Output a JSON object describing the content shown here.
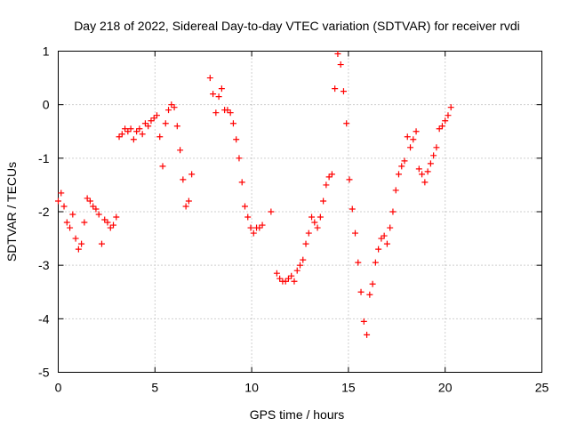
{
  "chart_data": {
    "type": "scatter",
    "title": "Day 218 of 2022, Sidereal Day-to-day VTEC variation (SDTVAR) for receiver rvdi",
    "xlabel": "GPS time / hours",
    "ylabel": "SDTVAR / TECUs",
    "xlim": [
      0,
      25
    ],
    "ylim": [
      -5,
      1
    ],
    "xticks": [
      0,
      5,
      10,
      15,
      20,
      25
    ],
    "yticks": [
      -5,
      -4,
      -3,
      -2,
      -1,
      0,
      1
    ],
    "xtick_labels": [
      "0",
      "5",
      "10",
      "15",
      "20",
      "25"
    ],
    "ytick_labels": [
      "-5",
      "-4",
      "-3",
      "-2",
      "-1",
      "0",
      "1"
    ],
    "grid": true,
    "marker": "+",
    "color": "#ff0000",
    "series": [
      {
        "name": "rvdi",
        "x": [
          0.0,
          0.15,
          0.3,
          0.45,
          0.6,
          0.75,
          0.9,
          1.05,
          1.2,
          1.35,
          1.5,
          1.65,
          1.8,
          1.95,
          2.1,
          2.25,
          2.4,
          2.55,
          2.7,
          2.85,
          3.0,
          3.15,
          3.3,
          3.45,
          3.6,
          3.75,
          3.9,
          4.05,
          4.2,
          4.35,
          4.5,
          4.65,
          4.8,
          4.95,
          5.1,
          5.25,
          5.4,
          5.55,
          5.7,
          5.85,
          6.0,
          6.15,
          6.3,
          6.45,
          6.6,
          6.75,
          6.9,
          7.85,
          8.0,
          8.15,
          8.3,
          8.45,
          8.6,
          8.75,
          8.9,
          9.05,
          9.2,
          9.35,
          9.5,
          9.65,
          9.8,
          9.95,
          10.1,
          10.25,
          10.4,
          10.55,
          11.0,
          11.3,
          11.45,
          11.6,
          11.75,
          11.9,
          12.05,
          12.2,
          12.35,
          12.5,
          12.65,
          12.8,
          12.95,
          13.1,
          13.25,
          13.4,
          13.55,
          13.7,
          13.85,
          14.0,
          14.15,
          14.3,
          14.45,
          14.6,
          14.75,
          14.9,
          15.05,
          15.2,
          15.35,
          15.5,
          15.65,
          15.8,
          15.95,
          16.1,
          16.25,
          16.4,
          16.55,
          16.7,
          16.85,
          17.0,
          17.15,
          17.3,
          17.45,
          17.6,
          17.75,
          17.9,
          18.05,
          18.2,
          18.35,
          18.5,
          18.65,
          18.8,
          18.95,
          19.1,
          19.25,
          19.4,
          19.55,
          19.7,
          19.85,
          20.0,
          20.15,
          20.3
        ],
        "y": [
          -1.8,
          -1.65,
          -1.9,
          -2.2,
          -2.3,
          -2.05,
          -2.5,
          -2.7,
          -2.6,
          -2.2,
          -1.75,
          -1.8,
          -1.9,
          -1.95,
          -2.05,
          -2.6,
          -2.15,
          -2.2,
          -2.3,
          -2.25,
          -2.1,
          -0.6,
          -0.55,
          -0.45,
          -0.5,
          -0.45,
          -0.65,
          -0.5,
          -0.45,
          -0.55,
          -0.35,
          -0.4,
          -0.3,
          -0.25,
          -0.2,
          -0.6,
          -1.15,
          -0.35,
          -0.1,
          0.0,
          -0.05,
          -0.4,
          -0.85,
          -1.4,
          -1.9,
          -1.8,
          -1.3,
          0.5,
          0.2,
          -0.15,
          0.15,
          0.3,
          -0.1,
          -0.1,
          -0.15,
          -0.35,
          -0.65,
          -1.0,
          -1.45,
          -1.9,
          -2.1,
          -2.3,
          -2.4,
          -2.3,
          -2.3,
          -2.25,
          -2.0,
          -3.15,
          -3.25,
          -3.3,
          -3.3,
          -3.25,
          -3.2,
          -3.3,
          -3.1,
          -3.0,
          -2.9,
          -2.6,
          -2.4,
          -2.1,
          -2.2,
          -2.3,
          -2.1,
          -1.8,
          -1.5,
          -1.35,
          -1.3,
          0.3,
          0.95,
          0.75,
          0.25,
          -0.35,
          -1.4,
          -1.95,
          -2.4,
          -2.95,
          -3.5,
          -4.05,
          -4.3,
          -3.55,
          -3.35,
          -2.95,
          -2.7,
          -2.5,
          -2.45,
          -2.6,
          -2.3,
          -2.0,
          -1.6,
          -1.3,
          -1.15,
          -1.05,
          -0.6,
          -0.8,
          -0.65,
          -0.5,
          -1.2,
          -1.3,
          -1.45,
          -1.25,
          -1.1,
          -0.95,
          -0.8,
          -0.45,
          -0.4,
          -0.3,
          -0.2,
          -0.05
        ]
      }
    ]
  }
}
